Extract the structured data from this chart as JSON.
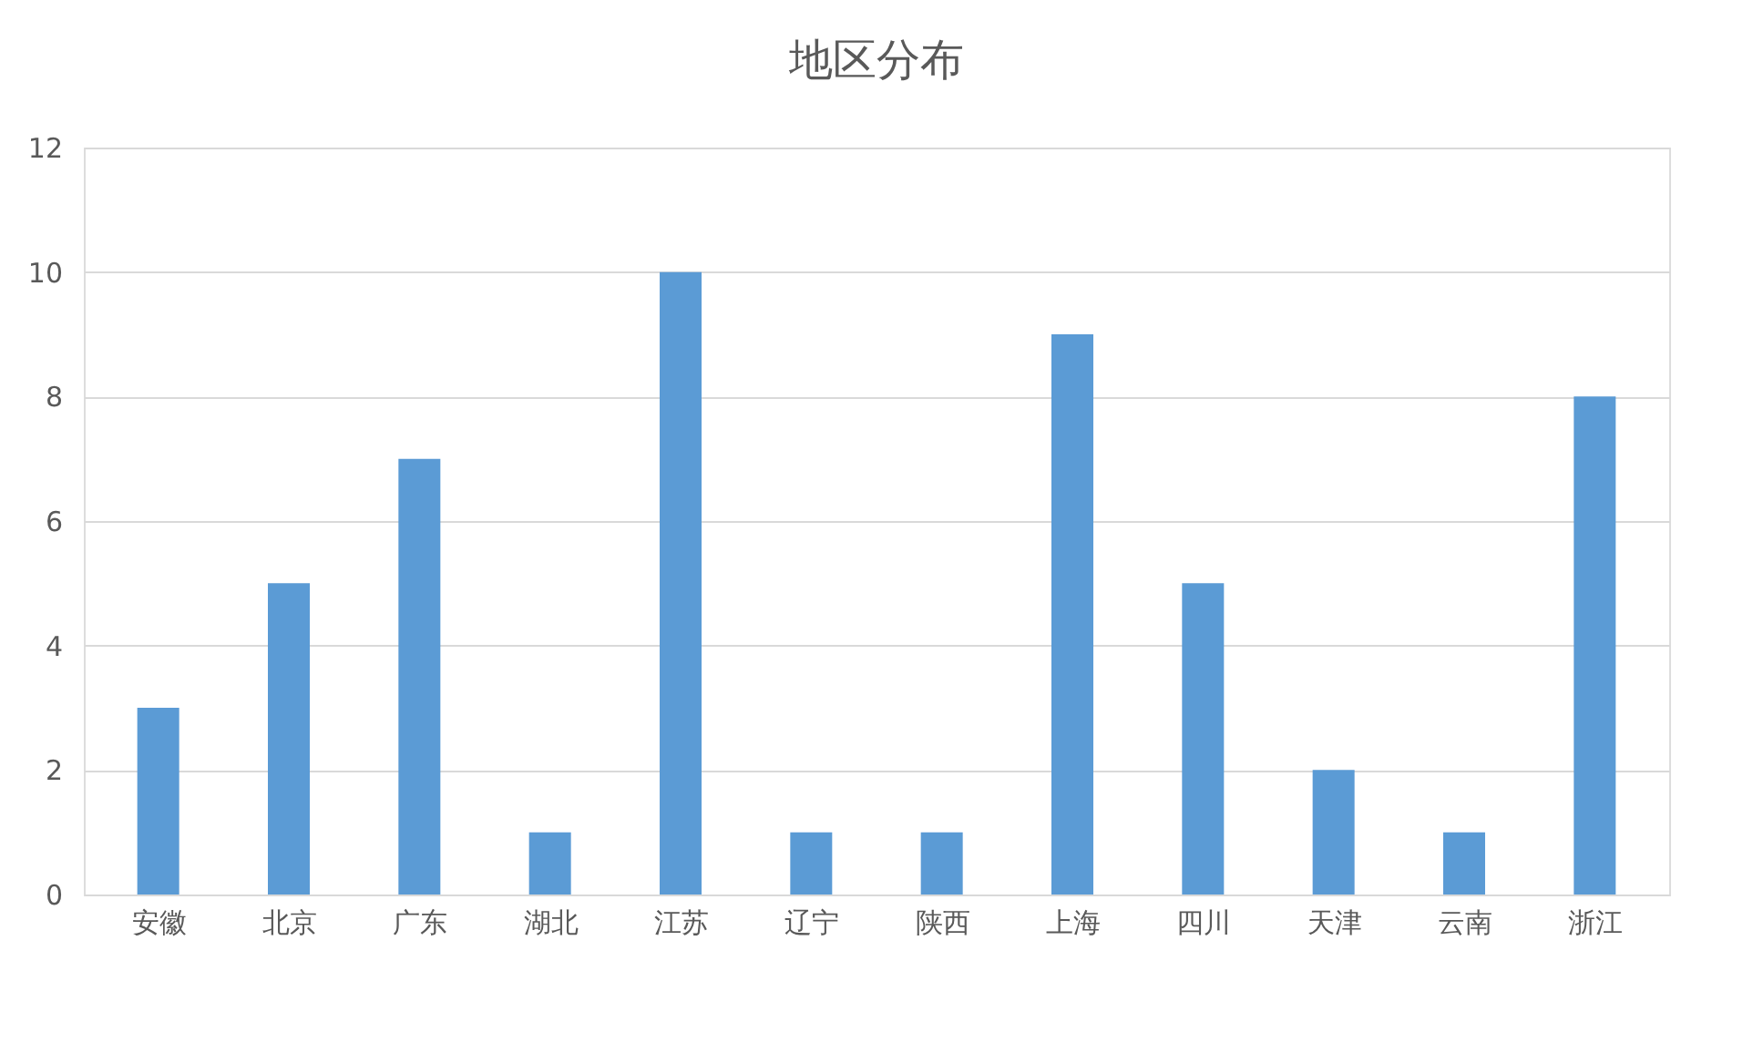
{
  "chart_data": {
    "type": "bar",
    "title": "地区分布",
    "categories": [
      "安徽",
      "北京",
      "广东",
      "湖北",
      "江苏",
      "辽宁",
      "陕西",
      "上海",
      "四川",
      "天津",
      "云南",
      "浙江"
    ],
    "values": [
      3,
      5,
      7,
      1,
      10,
      1,
      1,
      9,
      5,
      2,
      1,
      8
    ],
    "color": "#5b9bd5",
    "ylim": [
      0,
      12
    ],
    "yticks": [
      0,
      2,
      4,
      6,
      8,
      10,
      12
    ],
    "grid": "y"
  }
}
